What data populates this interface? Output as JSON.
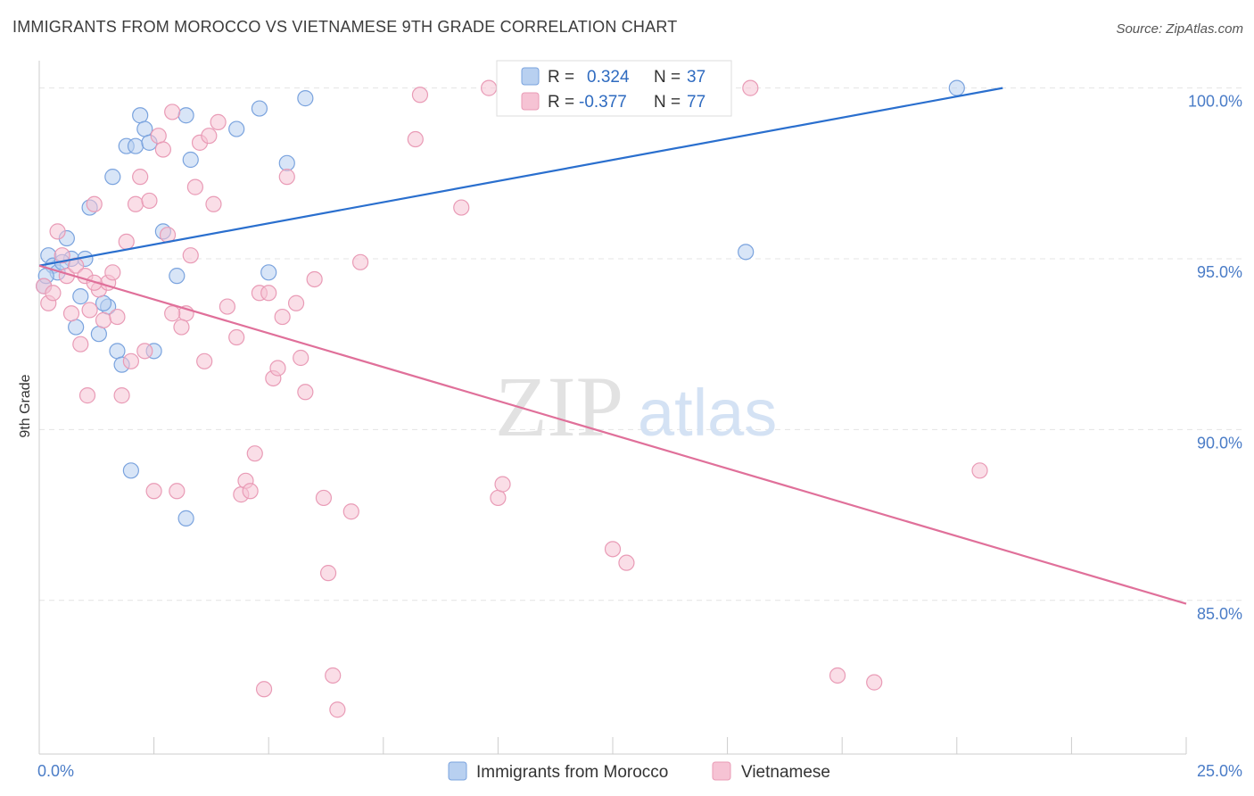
{
  "title": "IMMIGRANTS FROM MOROCCO VS VIETNAMESE 9TH GRADE CORRELATION CHART",
  "source": "Source: ZipAtlas.com",
  "watermark": {
    "zip": "ZIP",
    "atlas": "atlas"
  },
  "colors": {
    "blue_fill": "#b8d0f0",
    "blue_stroke": "#7aa3de",
    "blue_line": "#2a6fce",
    "pink_fill": "#f6c3d4",
    "pink_stroke": "#e99bb6",
    "pink_line": "#e0709a",
    "grid": "#e4e4e4",
    "axis_label": "#4a7cc7"
  },
  "legend": {
    "rows": [
      {
        "r_label": "R = ",
        "r_value": "0.324",
        "n_label": "N = ",
        "n_value": "37"
      },
      {
        "r_label": "R = ",
        "r_value": "-0.377",
        "n_label": "N = ",
        "n_value": "77"
      }
    ]
  },
  "chart_data": {
    "type": "scatter",
    "xlabel": "",
    "ylabel": "9th Grade",
    "xlim": [
      0,
      25
    ],
    "ylim": [
      80.5,
      100.8
    ],
    "x_tick_labels": [
      "0.0%",
      "25.0%"
    ],
    "y_ticks": [
      85,
      90,
      95,
      100
    ],
    "y_tick_labels": [
      "85.0%",
      "90.0%",
      "95.0%",
      "100.0%"
    ],
    "series": [
      {
        "name": "Immigrants from Morocco",
        "color": "blue",
        "trend": {
          "x": [
            0,
            21
          ],
          "y": [
            94.8,
            100.0
          ]
        },
        "points": [
          [
            0.2,
            95.1
          ],
          [
            0.3,
            94.8
          ],
          [
            0.4,
            94.6
          ],
          [
            0.6,
            95.6
          ],
          [
            0.7,
            95.0
          ],
          [
            0.8,
            93.0
          ],
          [
            0.9,
            93.9
          ],
          [
            1.0,
            95.0
          ],
          [
            1.1,
            96.5
          ],
          [
            1.3,
            92.8
          ],
          [
            1.5,
            93.6
          ],
          [
            1.6,
            97.4
          ],
          [
            1.7,
            92.3
          ],
          [
            1.8,
            91.9
          ],
          [
            1.9,
            98.3
          ],
          [
            2.1,
            98.3
          ],
          [
            2.2,
            99.2
          ],
          [
            2.3,
            98.8
          ],
          [
            2.4,
            98.4
          ],
          [
            2.5,
            92.3
          ],
          [
            2.7,
            95.8
          ],
          [
            3.0,
            94.5
          ],
          [
            3.2,
            99.2
          ],
          [
            3.3,
            97.9
          ],
          [
            4.3,
            98.8
          ],
          [
            4.8,
            99.4
          ],
          [
            5.0,
            94.6
          ],
          [
            5.4,
            97.8
          ],
          [
            5.8,
            99.7
          ],
          [
            2.0,
            88.8
          ],
          [
            3.2,
            87.4
          ],
          [
            15.4,
            95.2
          ],
          [
            20.0,
            100.0
          ],
          [
            0.1,
            94.2
          ],
          [
            0.5,
            94.9
          ],
          [
            1.4,
            93.7
          ],
          [
            0.15,
            94.5
          ]
        ]
      },
      {
        "name": "Vietnamese",
        "color": "pink",
        "trend": {
          "x": [
            0,
            25
          ],
          "y": [
            94.8,
            84.9
          ]
        },
        "points": [
          [
            0.1,
            94.2
          ],
          [
            0.2,
            93.7
          ],
          [
            0.4,
            95.8
          ],
          [
            0.5,
            95.1
          ],
          [
            0.6,
            94.5
          ],
          [
            0.7,
            93.4
          ],
          [
            0.8,
            94.8
          ],
          [
            0.9,
            92.5
          ],
          [
            1.0,
            94.5
          ],
          [
            1.1,
            93.5
          ],
          [
            1.2,
            96.6
          ],
          [
            1.3,
            94.1
          ],
          [
            1.4,
            93.2
          ],
          [
            1.5,
            94.3
          ],
          [
            1.6,
            94.6
          ],
          [
            1.7,
            93.3
          ],
          [
            1.8,
            91.0
          ],
          [
            1.9,
            95.5
          ],
          [
            2.0,
            92.0
          ],
          [
            2.1,
            96.6
          ],
          [
            2.2,
            97.4
          ],
          [
            2.3,
            92.3
          ],
          [
            2.4,
            96.7
          ],
          [
            2.6,
            98.6
          ],
          [
            2.7,
            98.2
          ],
          [
            2.8,
            95.7
          ],
          [
            2.9,
            99.3
          ],
          [
            3.0,
            88.2
          ],
          [
            3.2,
            93.4
          ],
          [
            3.3,
            95.1
          ],
          [
            3.4,
            97.1
          ],
          [
            3.5,
            98.4
          ],
          [
            3.6,
            92.0
          ],
          [
            3.7,
            98.6
          ],
          [
            3.8,
            96.6
          ],
          [
            3.9,
            99.0
          ],
          [
            4.1,
            93.6
          ],
          [
            4.3,
            92.7
          ],
          [
            4.4,
            88.1
          ],
          [
            4.5,
            88.5
          ],
          [
            4.6,
            88.2
          ],
          [
            4.7,
            89.3
          ],
          [
            4.8,
            94.0
          ],
          [
            4.9,
            82.4
          ],
          [
            5.0,
            94.0
          ],
          [
            5.1,
            91.5
          ],
          [
            5.2,
            91.8
          ],
          [
            5.3,
            93.3
          ],
          [
            5.4,
            97.4
          ],
          [
            5.6,
            93.7
          ],
          [
            5.7,
            92.1
          ],
          [
            5.8,
            91.1
          ],
          [
            6.0,
            94.4
          ],
          [
            6.2,
            88.0
          ],
          [
            6.3,
            85.8
          ],
          [
            6.4,
            82.8
          ],
          [
            6.5,
            81.8
          ],
          [
            6.8,
            87.6
          ],
          [
            7.0,
            94.9
          ],
          [
            8.2,
            98.5
          ],
          [
            8.3,
            99.8
          ],
          [
            9.2,
            96.5
          ],
          [
            9.8,
            100.0
          ],
          [
            10.0,
            88.0
          ],
          [
            10.1,
            88.4
          ],
          [
            12.5,
            86.5
          ],
          [
            12.8,
            86.1
          ],
          [
            15.5,
            100.0
          ],
          [
            17.4,
            82.8
          ],
          [
            18.2,
            82.6
          ],
          [
            20.5,
            88.8
          ],
          [
            2.5,
            88.2
          ],
          [
            1.2,
            94.3
          ],
          [
            3.1,
            93.0
          ],
          [
            0.3,
            94.0
          ],
          [
            1.05,
            91.0
          ],
          [
            2.9,
            93.4
          ]
        ]
      }
    ],
    "legend_entries": [
      "Immigrants from Morocco",
      "Vietnamese"
    ]
  }
}
